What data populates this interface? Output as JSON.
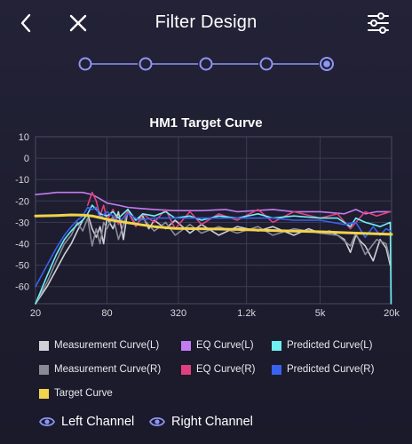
{
  "header": {
    "title": "Filter Design",
    "back_icon": "chevron-left-icon",
    "close_icon": "close-icon",
    "settings_icon": "sliders-icon"
  },
  "stepper": {
    "steps": 5,
    "active_step": 5,
    "accent": "#8f96f5"
  },
  "chart_data": {
    "type": "line",
    "title": "HM1 Target Curve",
    "x_ticks": [
      "20",
      "80",
      "320",
      "1.2k",
      "5k",
      "20k"
    ],
    "y_ticks": [
      "10",
      "0",
      "-10",
      "-20",
      "-30",
      "-40",
      "-50",
      "-60"
    ],
    "xlim": [
      20,
      20000
    ],
    "ylim": [
      -68,
      10
    ],
    "x_scale": "log",
    "grid": true,
    "legend_position": "bottom",
    "series": [
      {
        "name": "Measurement Curve(L)",
        "color": "#d0d0d8",
        "x": [
          20,
          25,
          30,
          35,
          40,
          45,
          50,
          55,
          60,
          65,
          70,
          75,
          80,
          90,
          100,
          110,
          120,
          140,
          160,
          180,
          200,
          250,
          300,
          400,
          500,
          700,
          1000,
          1500,
          2000,
          3000,
          4000,
          5000,
          6000,
          7000,
          8000,
          9000,
          10000,
          11000,
          12000,
          14000,
          16000,
          18000,
          19500
        ],
        "y": [
          -68,
          -60,
          -52,
          -45,
          -40,
          -34,
          -29,
          -26,
          -33,
          -37,
          -32,
          -40,
          -28,
          -33,
          -25,
          -38,
          -24,
          -29,
          -27,
          -33,
          -29,
          -33,
          -29,
          -35,
          -31,
          -36,
          -32,
          -34,
          -32,
          -36,
          -33,
          -35,
          -34,
          -36,
          -38,
          -44,
          -36,
          -39,
          -41,
          -48,
          -38,
          -42,
          -50
        ]
      },
      {
        "name": "Measurement Curve(R)",
        "color": "#8a8a96",
        "x": [
          20,
          25,
          30,
          35,
          40,
          45,
          50,
          55,
          60,
          65,
          70,
          75,
          80,
          90,
          100,
          120,
          140,
          160,
          200,
          250,
          300,
          400,
          500,
          700,
          1000,
          1500,
          2000,
          3000,
          5000,
          7000,
          9000,
          10000,
          12000,
          15000,
          18000,
          19500
        ],
        "y": [
          -68,
          -58,
          -48,
          -40,
          -36,
          -30,
          -34,
          -28,
          -41,
          -33,
          -40,
          -30,
          -33,
          -27,
          -38,
          -25,
          -31,
          -28,
          -34,
          -30,
          -36,
          -31,
          -35,
          -32,
          -35,
          -32,
          -36,
          -33,
          -35,
          -36,
          -41,
          -35,
          -45,
          -38,
          -40,
          -48
        ]
      },
      {
        "name": "EQ Curve(L)",
        "color": "#c37cf0",
        "x": [
          20,
          25,
          30,
          40,
          50,
          60,
          70,
          80,
          100,
          120,
          150,
          200,
          300,
          500,
          800,
          1000,
          2000,
          3000,
          5000,
          8000,
          10000,
          12000,
          15000,
          19500
        ],
        "y": [
          -17,
          -16.5,
          -16,
          -16,
          -16,
          -17,
          -19,
          -21,
          -22,
          -23,
          -23.5,
          -24,
          -24.5,
          -24.5,
          -24,
          -25,
          -24,
          -25,
          -25,
          -26,
          -24,
          -26,
          -25,
          -25
        ]
      },
      {
        "name": "EQ Curve(R)",
        "color": "#e0407e",
        "x": [
          55,
          60,
          65,
          70,
          75,
          80,
          90,
          100,
          120,
          140,
          160,
          200,
          250,
          300,
          400,
          500,
          700,
          1000,
          1500,
          2000,
          3000,
          5000,
          7000,
          9000,
          12000,
          15000,
          19500
        ],
        "y": [
          -22,
          -16,
          -20,
          -27,
          -22,
          -29,
          -24,
          -31,
          -25,
          -32,
          -26,
          -30,
          -24,
          -33,
          -25,
          -31,
          -26,
          -29,
          -24,
          -30,
          -25,
          -28,
          -26,
          -33,
          -25,
          -27,
          -25
        ]
      },
      {
        "name": "Predicted Curve(L)",
        "color": "#6ef0f4",
        "x": [
          20,
          25,
          30,
          35,
          40,
          45,
          50,
          55,
          60,
          65,
          70,
          80,
          90,
          100,
          120,
          140,
          160,
          200,
          250,
          300,
          400,
          500,
          700,
          1000,
          1500,
          2000,
          3000,
          5000,
          7000,
          9000,
          10000,
          12000,
          14000,
          16000,
          19500,
          19800
        ],
        "y": [
          -68,
          -55,
          -45,
          -38,
          -34,
          -31,
          -29,
          -26,
          -22,
          -24,
          -26,
          -27,
          -25,
          -28,
          -24,
          -29,
          -26,
          -27,
          -25,
          -28,
          -27,
          -29,
          -27,
          -28,
          -26,
          -28,
          -27,
          -28,
          -28,
          -32,
          -28,
          -30,
          -31,
          -32,
          -30,
          -68
        ]
      },
      {
        "name": "Predicted Curve(R)",
        "color": "#3a62f0",
        "x": [
          20,
          25,
          30,
          35,
          40,
          45,
          50,
          55,
          60,
          65,
          70,
          80,
          90,
          100,
          120,
          150,
          200,
          300,
          500,
          1000,
          2000,
          3000,
          5000,
          8000,
          10000,
          12000,
          14000,
          16000,
          18000,
          19500
        ],
        "y": [
          -60,
          -50,
          -42,
          -36,
          -32,
          -29,
          -27,
          -23,
          -24,
          -23,
          -28,
          -25,
          -27,
          -30,
          -26,
          -29,
          -28,
          -28,
          -28,
          -28,
          -28,
          -29,
          -29,
          -31,
          -30,
          -37,
          -32,
          -36,
          -33,
          -34
        ]
      },
      {
        "name": "Target Curve",
        "color": "#f1d34c",
        "x": [
          20,
          30,
          40,
          50,
          60,
          70,
          80,
          100,
          150,
          200,
          300,
          500,
          1000,
          2000,
          5000,
          10000,
          20000
        ],
        "y": [
          -27,
          -26.8,
          -26.5,
          -26.6,
          -27,
          -27.8,
          -28.6,
          -29.5,
          -31,
          -32,
          -32.8,
          -33,
          -33.3,
          -33.8,
          -34.4,
          -35,
          -35.6
        ]
      }
    ]
  },
  "legend": {
    "items": [
      {
        "label": "Measurement Curve(L)",
        "color": "#d0d0d8"
      },
      {
        "label": "EQ Curve(L)",
        "color": "#c37cf0"
      },
      {
        "label": "Predicted Curve(L)",
        "color": "#6ef0f4"
      },
      {
        "label": "Measurement Curve(R)",
        "color": "#8a8a96"
      },
      {
        "label": "EQ Curve(R)",
        "color": "#e0407e"
      },
      {
        "label": "Predicted Curve(R)",
        "color": "#3a62f0"
      },
      {
        "label": "Target Curve",
        "color": "#f1d34c"
      }
    ]
  },
  "channels": {
    "left_label": "Left Channel",
    "right_label": "Right Channel",
    "icon": "eye-icon",
    "icon_color": "#8f96f5"
  }
}
